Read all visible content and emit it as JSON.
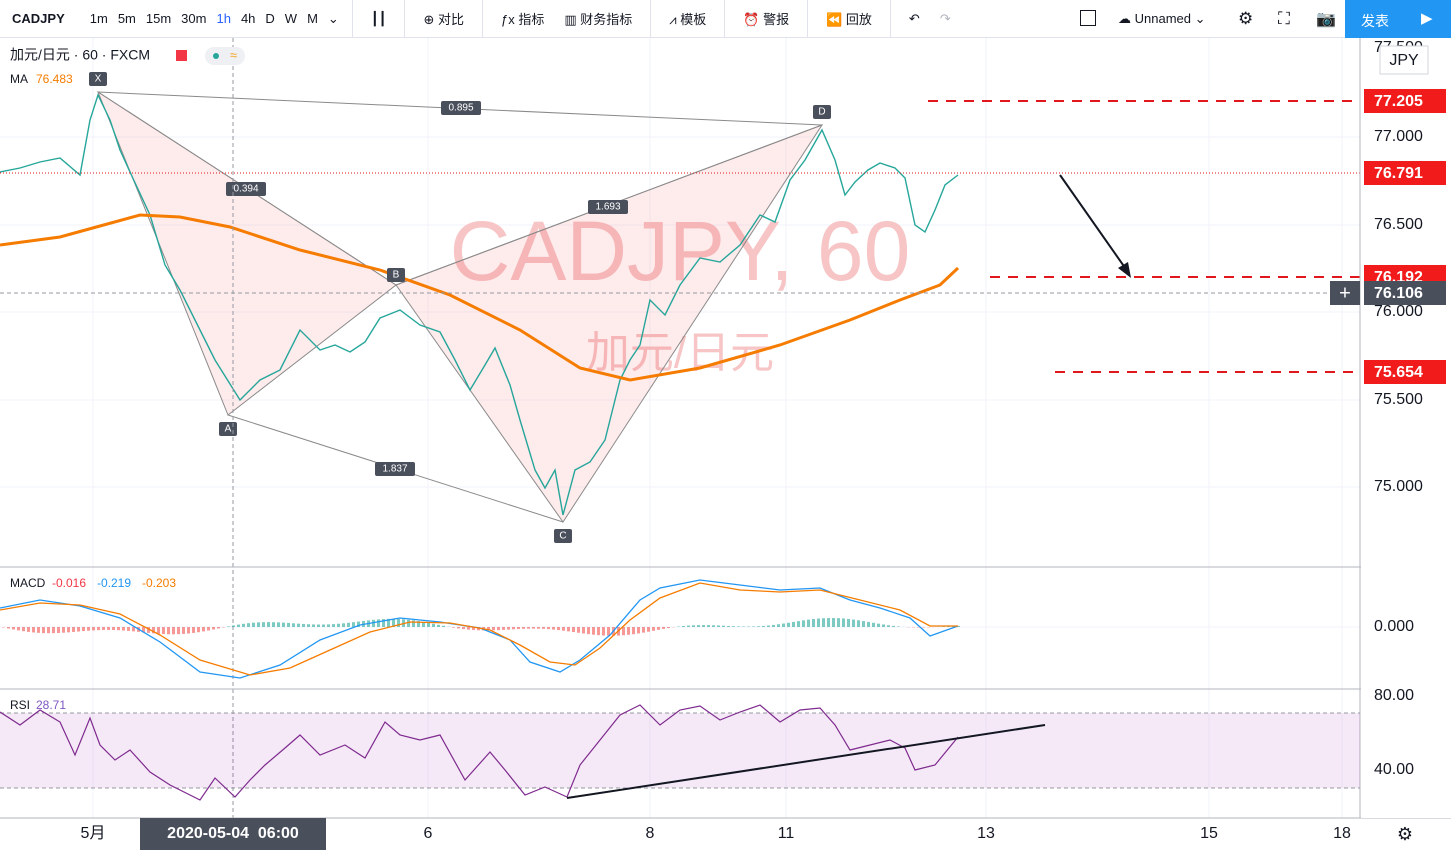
{
  "toolbar": {
    "symbol": "CADJPY",
    "intervals": [
      "1m",
      "5m",
      "15m",
      "30m",
      "1h",
      "4h",
      "D",
      "W",
      "M"
    ],
    "buttons": [
      "对比",
      "指标",
      "财务指标",
      "模板",
      "警报",
      "回放"
    ],
    "layout_name": "Unnamed",
    "publish": "发表"
  },
  "legend": {
    "symbol": "加元/日元 · 60 · FXCM",
    "ma_label": "MA",
    "ma_value": "76.483",
    "macd_label": "MACD",
    "macd_values": [
      "-0.016",
      "-0.219",
      "-0.203"
    ],
    "rsi_label": "RSI",
    "rsi_value": "28.71"
  },
  "watermark": {
    "title": "CADJPY, 60",
    "subtitle": "加元/日元"
  },
  "pattern": {
    "points": [
      "X",
      "A",
      "B",
      "C",
      "D"
    ],
    "ratios": [
      "0.895",
      "0.394",
      "1.693",
      "1.837"
    ]
  },
  "price_axis": {
    "currency": "JPY",
    "ticks": [
      "77.500",
      "77.000",
      "76.500",
      "76.000",
      "75.500",
      "75.000"
    ],
    "levels": [
      "77.205",
      "76.791",
      "76.192",
      "76.106",
      "75.654"
    ]
  },
  "macd_axis": {
    "ticks": [
      "0.000"
    ]
  },
  "rsi_axis": {
    "ticks": [
      "80.00",
      "40.00"
    ]
  },
  "time_axis": {
    "ticks": [
      "5月",
      "6",
      "8",
      "11",
      "13",
      "15",
      "18"
    ],
    "cursor": "2020-05-04  06:00"
  }
}
